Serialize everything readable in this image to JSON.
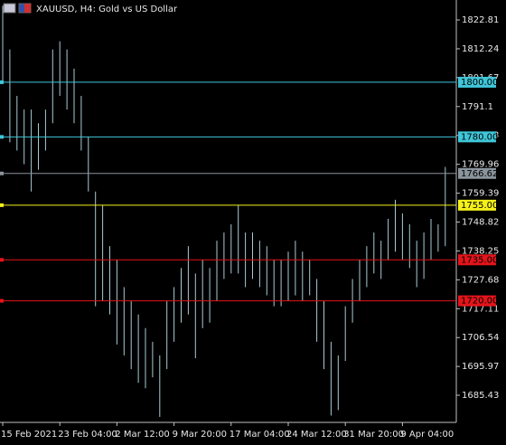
{
  "chart_data": {
    "type": "range",
    "title": "XAUUSD, H4:  Gold vs US Dollar",
    "color": "#a9cbd6",
    "categories": [
      "15 Feb 2021",
      null,
      null,
      null,
      null,
      null,
      null,
      null,
      "23 Feb 04:00",
      null,
      null,
      null,
      null,
      null,
      null,
      null,
      "2 Mar 12:00",
      null,
      null,
      null,
      null,
      null,
      null,
      null,
      "9 Mar 20:00",
      null,
      null,
      null,
      null,
      null,
      null,
      null,
      "17 Mar 04:00",
      null,
      null,
      null,
      null,
      null,
      null,
      null,
      "24 Mar 12:00",
      null,
      null,
      null,
      null,
      null,
      null,
      null,
      "31 Mar 20:00",
      null,
      null,
      null,
      null,
      null,
      null,
      null,
      "9 Apr 04:00",
      null,
      null,
      null,
      null,
      null,
      null
    ],
    "high": [
      1828,
      1812,
      1795,
      1790,
      1790,
      1785,
      1790,
      1812,
      1815,
      1812,
      1805,
      1795,
      1780,
      1760,
      1755,
      1740,
      1735,
      1725,
      1720,
      1715,
      1710,
      1705,
      1700,
      1720,
      1725,
      1732,
      1740,
      1730,
      1735,
      1732,
      1742,
      1745,
      1748,
      1755,
      1745,
      1745,
      1742,
      1740,
      1735,
      1735,
      1738,
      1742,
      1738,
      1735,
      1728,
      1720,
      1705,
      1700,
      1718,
      1728,
      1735,
      1740,
      1745,
      1742,
      1750,
      1757,
      1752,
      1748,
      1742,
      1745,
      1750,
      1748,
      1769
    ],
    "low": [
      1800,
      1778,
      1775,
      1770,
      1760,
      1768,
      1775,
      1785,
      1795,
      1790,
      1785,
      1775,
      1760,
      1718,
      1720,
      1715,
      1704,
      1700,
      1695,
      1690,
      1688,
      1692,
      1677.5,
      1695,
      1705,
      1712,
      1715,
      1699,
      1710,
      1712,
      1720,
      1728,
      1730,
      1730,
      1725,
      1728,
      1725,
      1722,
      1718,
      1718,
      1720,
      1722,
      1720,
      1722,
      1705,
      1695,
      1678,
      1680,
      1698,
      1712,
      1720,
      1725,
      1730,
      1728,
      1735,
      1738,
      1735,
      1732,
      1725,
      1728,
      1735,
      1738,
      1740
    ],
    "ylim": [
      1675.5,
      1830.1
    ],
    "yticks": [
      1822.81,
      1812.24,
      1801.67,
      1791.1,
      1780.53,
      1769.96,
      1759.39,
      1748.82,
      1738.25,
      1727.68,
      1717.11,
      1706.54,
      1695.97,
      1685.43
    ],
    "levels": [
      {
        "value": 1800,
        "label": "1800.00",
        "color": "#3fc6d8"
      },
      {
        "value": 1780,
        "label": "1780.00",
        "color": "#3fc6d8"
      },
      {
        "value": 1766.62,
        "label": "1766.62",
        "color": "#8a949c"
      },
      {
        "value": 1755,
        "label": "1755.00",
        "color": "#f4f01a"
      },
      {
        "value": 1735,
        "label": "1735.00",
        "color": "#e4141a"
      },
      {
        "value": 1720,
        "label": "1720.00",
        "color": "#e4141a"
      }
    ]
  }
}
